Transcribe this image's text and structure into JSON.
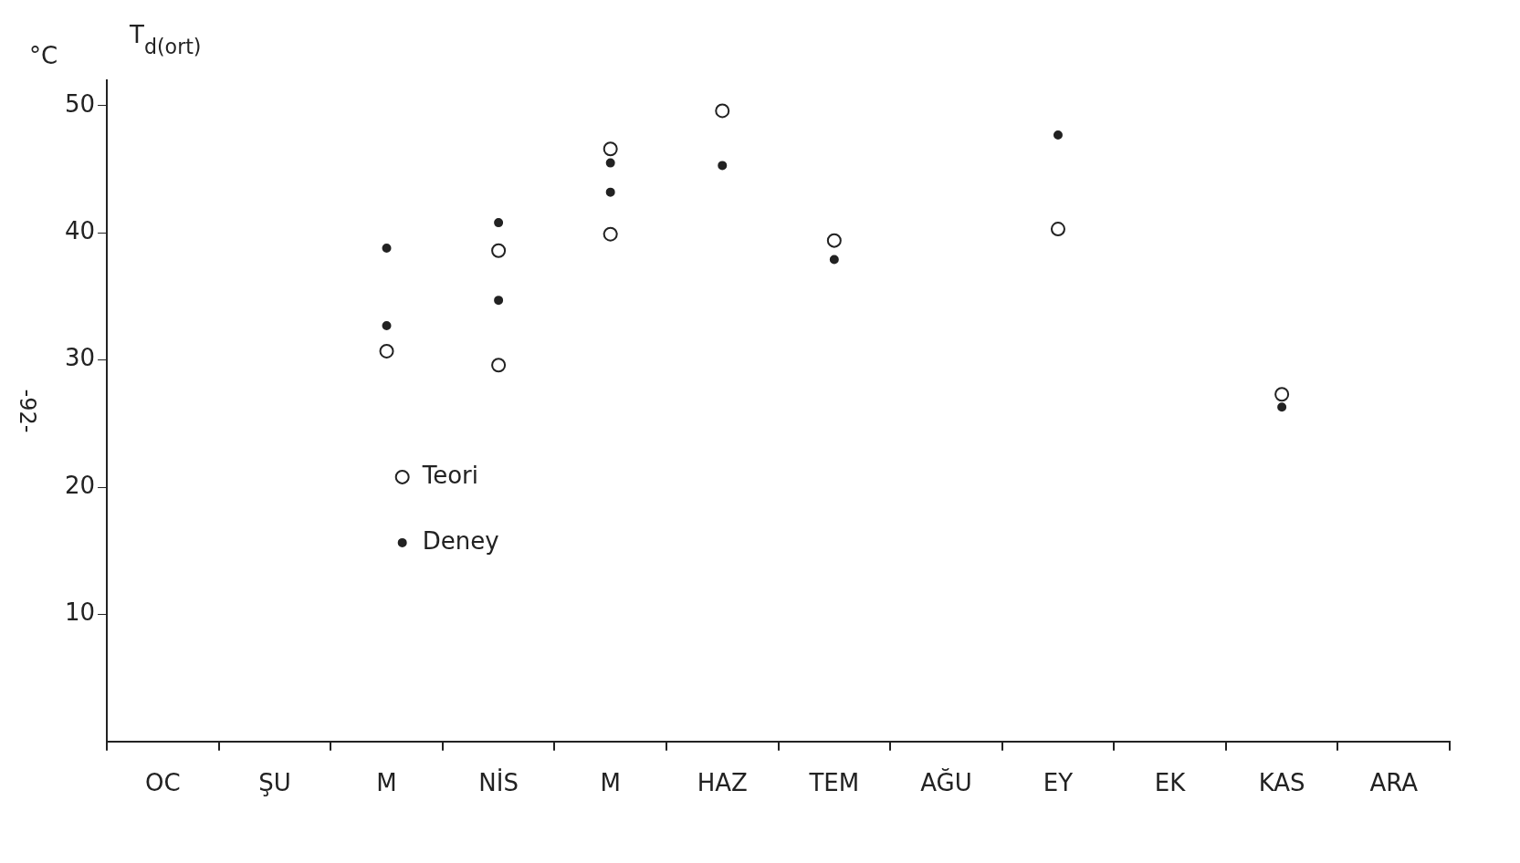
{
  "chart_data": {
    "type": "scatter",
    "title": "T$_{d(ort)}$",
    "ylabel": "°C",
    "annotations": [
      "-92-"
    ],
    "categories": [
      "OC",
      "ŞU",
      "M",
      "NİS",
      "M",
      "HAZ",
      "TEM",
      "AĞU",
      "EY",
      "EK",
      "KAS",
      "ARA"
    ],
    "series": [
      {
        "name": "Teori",
        "color": "#222222",
        "marker": "circle",
        "values": [
          null,
          null,
          30.7,
          38.6,
          46.6,
          49.6,
          39.4,
          null,
          40.3,
          null,
          27.3,
          null
        ]
      },
      {
        "color": "#222222",
        "marker": "circle",
        "values": [
          null,
          null,
          null,
          29.6,
          39.9,
          null,
          null,
          null,
          null,
          null,
          null,
          null
        ]
      },
      {
        "name": "Deney",
        "color": "#222222",
        "marker": "circle",
        "values": [
          null,
          null,
          38.8,
          40.8,
          45.5,
          45.3,
          37.9,
          null,
          47.7,
          null,
          26.3,
          null
        ]
      },
      {
        "color": "#222222",
        "marker": "circle",
        "values": [
          null,
          null,
          32.7,
          34.7,
          43.2,
          null,
          null,
          null,
          null,
          null,
          null,
          null
        ]
      }
    ],
    "ylim": [
      0,
      52
    ],
    "yticks": [
      10,
      20,
      30,
      40,
      50
    ],
    "grid": false,
    "legend": "left"
  }
}
